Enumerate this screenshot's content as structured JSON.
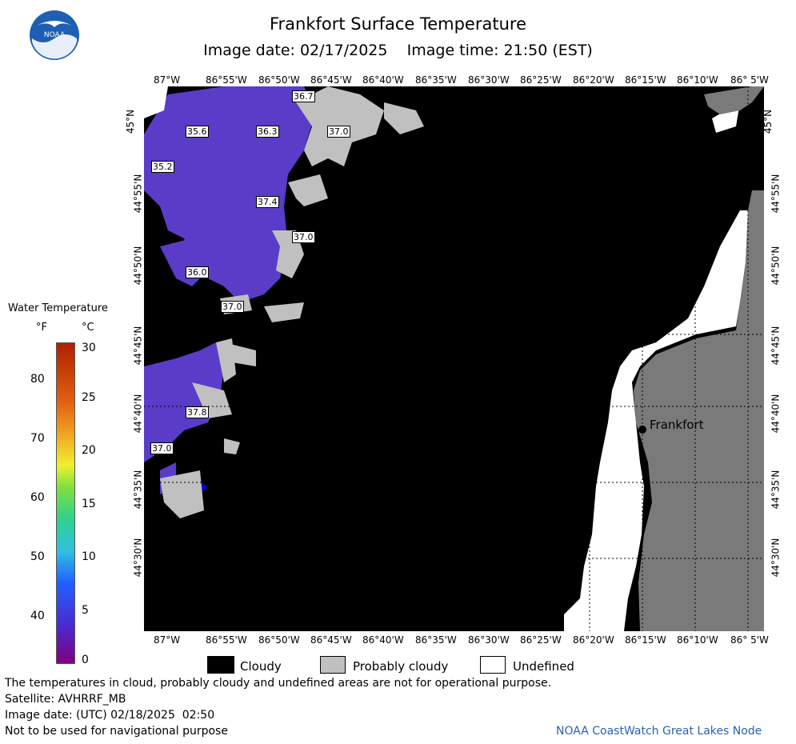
{
  "header": {
    "title": "Frankfort Surface Temperature",
    "subtitle": "Image date: 02/17/2025    Image time: 21:50 (EST)",
    "logo_text": "NOAA"
  },
  "map": {
    "lon_labels": [
      "87°W",
      "86°55'W",
      "86°50'W",
      "86°45'W",
      "86°40'W",
      "86°35'W",
      "86°30'W",
      "86°25'W",
      "86°20'W",
      "86°15'W",
      "86°10'W",
      "86° 5'W"
    ],
    "lat_labels": [
      "45°N",
      "44°55'N",
      "44°50'N",
      "44°45'N",
      "44°40'N",
      "44°35'N",
      "44°30'N"
    ],
    "temperature_labels": [
      "36.7",
      "35.6",
      "36.3",
      "37.0",
      "35.2",
      "37.4",
      "37.0",
      "36.0",
      "37.0",
      "37.8",
      "37.0"
    ],
    "city": {
      "name": "Frankfort"
    },
    "colors": {
      "water_cold": "#5a3cc8",
      "cloudy": "#000000",
      "probably_cloudy": "#c0c0c0",
      "land": "#7a7a7a",
      "undefined": "#ffffff"
    }
  },
  "legend": {
    "title": "Water Temperature",
    "unit_f": "°F",
    "unit_c": "°C",
    "fahrenheit_ticks": [
      "80",
      "70",
      "60",
      "50",
      "40"
    ],
    "celsius_ticks": [
      "30",
      "25",
      "20",
      "15",
      "10",
      "5",
      "0"
    ],
    "swatches": [
      {
        "label": "Cloudy",
        "color": "#000000"
      },
      {
        "label": "Probably cloudy",
        "color": "#c0c0c0"
      },
      {
        "label": "Undefined",
        "color": "#ffffff"
      }
    ]
  },
  "footer": {
    "lines": [
      "The temperatures in cloud, probably cloudy and undefined areas are not for operational purpose.",
      "Satellite: AVHRRF_MB",
      "Image date: (UTC) 02/18/2025  02:50",
      "Not to be used for navigational purpose"
    ],
    "credit": "NOAA CoastWatch Great Lakes Node"
  }
}
